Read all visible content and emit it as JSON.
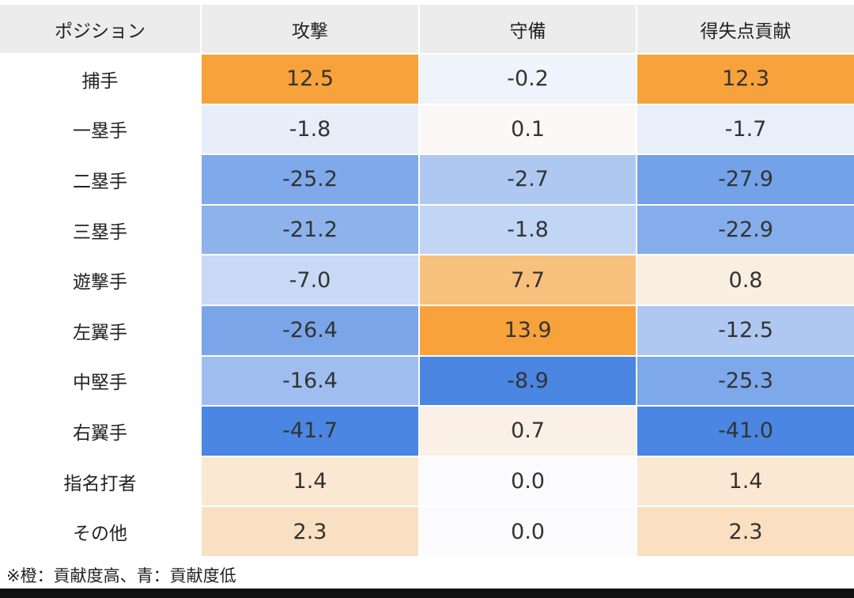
{
  "chart_data": {
    "type": "table",
    "headers": [
      "ポジション",
      "攻撃",
      "守備",
      "得失点貢献"
    ],
    "rows": [
      {
        "position": "捕手",
        "values": [
          "12.5",
          "-0.2",
          "12.3"
        ]
      },
      {
        "position": "一塁手",
        "values": [
          "-1.8",
          "0.1",
          "-1.7"
        ]
      },
      {
        "position": "二塁手",
        "values": [
          "-25.2",
          "-2.7",
          "-27.9"
        ]
      },
      {
        "position": "三塁手",
        "values": [
          "-21.2",
          "-1.8",
          "-22.9"
        ]
      },
      {
        "position": "遊撃手",
        "values": [
          "-7.0",
          "7.7",
          "0.8"
        ]
      },
      {
        "position": "左翼手",
        "values": [
          "-26.4",
          "13.9",
          "-12.5"
        ]
      },
      {
        "position": "中堅手",
        "values": [
          "-16.4",
          "-8.9",
          "-25.3"
        ]
      },
      {
        "position": "右翼手",
        "values": [
          "-41.7",
          "0.7",
          "-41.0"
        ]
      },
      {
        "position": "指名打者",
        "values": [
          "1.4",
          "0.0",
          "1.4"
        ]
      },
      {
        "position": "その他",
        "values": [
          "2.3",
          "0.0",
          "2.3"
        ]
      }
    ],
    "color_scale": {
      "high_color": "#f7a23b",
      "low_color": "#4a86e2",
      "neutral_color": "#fbfbfd"
    },
    "footnote": "※橙：貢献度高、青：貢献度低"
  }
}
